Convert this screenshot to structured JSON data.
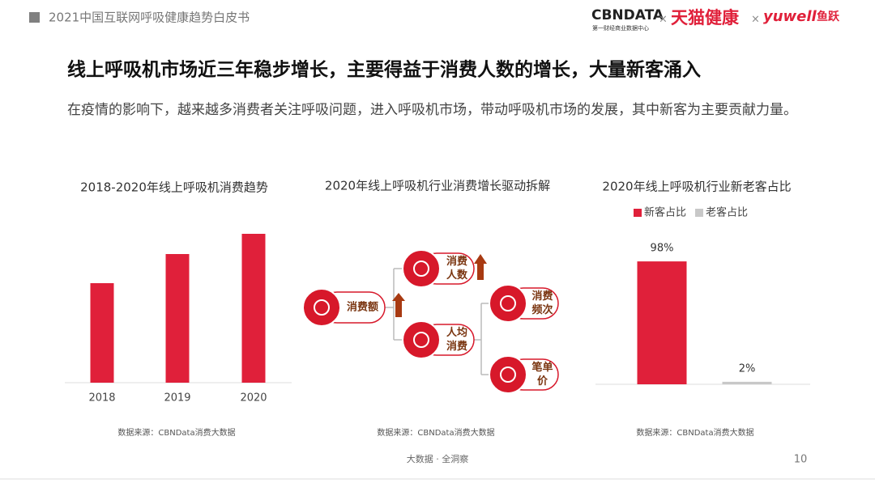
{
  "header": {
    "report": "2021中国互联网呼吸健康趋势白皮书",
    "logos": {
      "cbndata": "CBNDATA",
      "cbndata_sub": "第一财经商业数据中心",
      "separator": "×",
      "tmall": "天猫健康",
      "yuwell": "yuwell",
      "yuwell_cn": "鱼跃"
    }
  },
  "title": "线上呼吸机市场近三年稳步增长，主要得益于消费人数的增长，大量新客涌入",
  "subtitle": "在疫情的影响下，越来越多消费者关注呼吸问题，进入呼吸机市场，带动呼吸机市场的发展，其中新客为主要贡献力量。",
  "chart_data": [
    {
      "type": "bar",
      "title": "2018-2020年线上呼吸机消费趋势",
      "categories": [
        "2018",
        "2019",
        "2020"
      ],
      "values": [
        123,
        159,
        184
      ],
      "color": "#e0203a",
      "ylim": [
        0,
        200
      ],
      "source": "数据来源：CBNData消费大数据"
    },
    {
      "type": "bar",
      "title": "2020年线上呼吸机行业新老客占比",
      "series": [
        {
          "name": "新客占比",
          "color": "#e0203a",
          "values": [
            98
          ],
          "value_labels": [
            "98%"
          ]
        },
        {
          "name": "老客占比",
          "color": "#c8c8c8",
          "values": [
            2
          ],
          "value_labels": [
            "2%"
          ]
        }
      ],
      "ylim": [
        0,
        100
      ],
      "legend": "top",
      "source": "数据来源：CBNData消费大数据"
    }
  ],
  "diagram": {
    "title": "2020年线上呼吸机行业消费增长驱动拆解",
    "nodes": [
      {
        "label": [
          "消费额"
        ]
      },
      {
        "label": [
          "消费",
          "人数"
        ]
      },
      {
        "label": [
          "人均",
          "消费"
        ]
      },
      {
        "label": [
          "消费",
          "频次"
        ]
      },
      {
        "label": [
          "笔单",
          "价"
        ]
      }
    ],
    "source": "数据来源：CBNData消费大数据"
  },
  "footer": {
    "tagline": "大数据 · 全洞察",
    "page": 10
  }
}
